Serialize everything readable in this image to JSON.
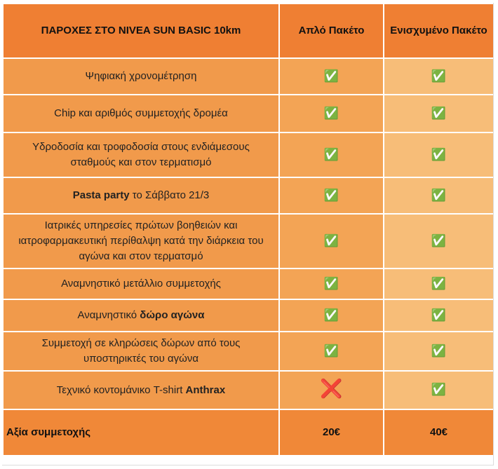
{
  "table": {
    "header": [
      "ΠΑΡΟΧΕΣ ΣΤΟ NIVEA SUN BASIC 10km",
      "Απλό Πακέτο",
      "Ενισχυμένο Πακέτο"
    ],
    "rows": [
      {
        "parts": [
          {
            "text": "Ψηφιακή χρονομέτρηση",
            "bold": false
          }
        ],
        "basic": "✅",
        "plus": "✅"
      },
      {
        "parts": [
          {
            "text": "Chip και αριθμός συμμετοχής δρομέα",
            "bold": false
          }
        ],
        "basic": "✅",
        "plus": "✅"
      },
      {
        "parts": [
          {
            "text": "Υδροδοσία και τροφοδοσία στους ενδιάμεσους σταθμούς και στον τερματισμό",
            "bold": false
          }
        ],
        "basic": "✅",
        "plus": "✅"
      },
      {
        "parts": [
          {
            "text": "Pasta party",
            "bold": true
          },
          {
            "text": " το Σάββατο 21/3",
            "bold": false
          }
        ],
        "basic": "✅",
        "plus": "✅"
      },
      {
        "parts": [
          {
            "text": "Ιατρικές υπηρεσίες πρώτων βοηθειών και ιατροφαρμακευτική περίθαλψη κατά την διάρκεια του αγώνα και στον τερματσμό",
            "bold": false
          }
        ],
        "basic": "✅",
        "plus": "✅"
      },
      {
        "parts": [
          {
            "text": "Αναμνηστικό μετάλλιο συμμετοχής",
            "bold": false
          }
        ],
        "basic": "✅",
        "plus": "✅"
      },
      {
        "parts": [
          {
            "text": "Αναμνηστικό ",
            "bold": false
          },
          {
            "text": "δώρο αγώνα",
            "bold": true
          }
        ],
        "basic": "✅",
        "plus": "✅"
      },
      {
        "parts": [
          {
            "text": "Συμμετοχή σε κληρώσεις δώρων από τους υποστηρικτές του αγώνα",
            "bold": false
          }
        ],
        "basic": "✅",
        "plus": "✅"
      },
      {
        "parts": [
          {
            "text": "Τεχνικό κοντομάνικο T-shirt ",
            "bold": false
          },
          {
            "text": "Anthrax",
            "bold": true
          }
        ],
        "basic": "❌",
        "plus": "✅"
      }
    ],
    "total": [
      "Αξία συμμετοχής",
      "20€",
      "40€"
    ]
  }
}
